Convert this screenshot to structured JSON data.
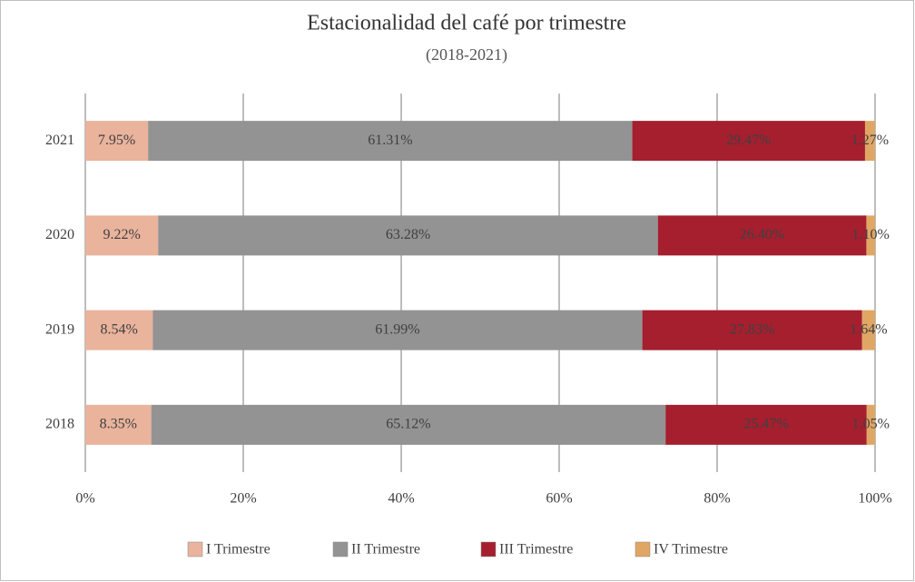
{
  "chart_data": {
    "type": "stacked_barh",
    "title": "Estacionalidad del café por trimestre",
    "subtitle": "(2018-2021)",
    "categories": [
      "2021",
      "2020",
      "2019",
      "2018"
    ],
    "series": [
      {
        "name": "I Trimestre",
        "color": "#e9b39c",
        "values": [
          7.95,
          9.22,
          8.54,
          8.35
        ],
        "value_labels": [
          "7.95%",
          "9.22%",
          "8.54%",
          "8.35%"
        ]
      },
      {
        "name": "II Trimestre",
        "color": "#939393",
        "values": [
          61.31,
          63.28,
          61.99,
          65.12
        ],
        "value_labels": [
          "61.31%",
          "63.28%",
          "61.99%",
          "65.12%"
        ]
      },
      {
        "name": "III Trimestre",
        "color": "#a51f2f",
        "values": [
          29.47,
          26.4,
          27.83,
          25.47
        ],
        "value_labels": [
          "29.47%",
          "26.40%",
          "27.83%",
          "25.47%"
        ]
      },
      {
        "name": "IV Trimestre",
        "color": "#e0a664",
        "values": [
          1.27,
          1.1,
          1.64,
          1.05
        ],
        "value_labels": [
          "1.27%",
          "1.10%",
          "1.64%",
          "1.05%"
        ]
      }
    ],
    "xlim": [
      0,
      100
    ],
    "xticks": [
      {
        "value": 0,
        "label": "0%"
      },
      {
        "value": 20,
        "label": "20%"
      },
      {
        "value": 40,
        "label": "40%"
      },
      {
        "value": 60,
        "label": "60%"
      },
      {
        "value": 80,
        "label": "80%"
      },
      {
        "value": 100,
        "label": "100%"
      }
    ],
    "grid": true,
    "legend": "bottom"
  }
}
